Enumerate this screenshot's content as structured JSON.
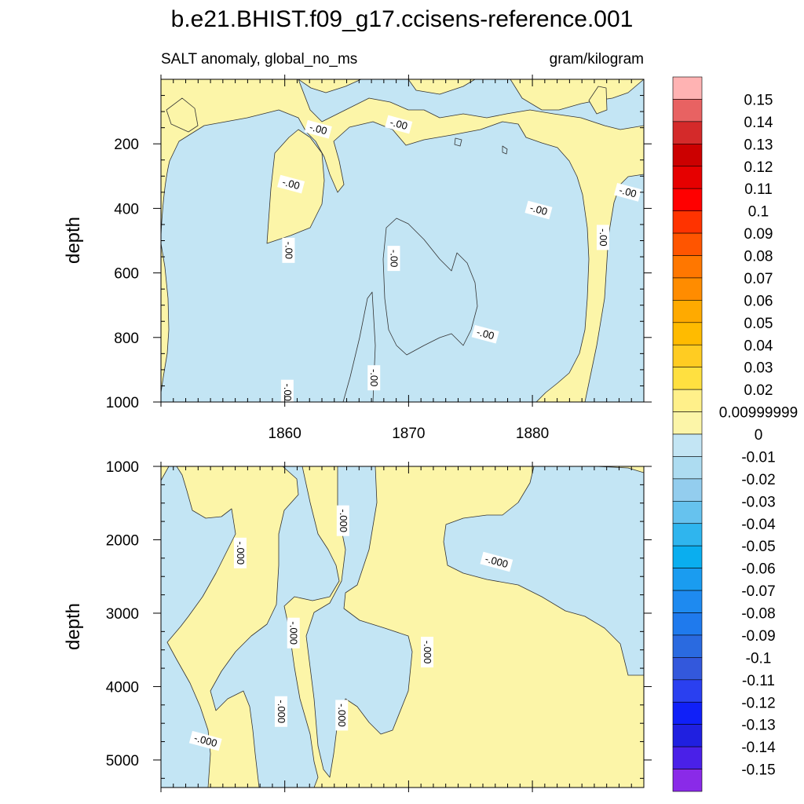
{
  "colors": {
    "positive_fill": "#fcf5a8",
    "negative_fill": "#c3e5f4",
    "contour_line": "#333333",
    "frame": "#000000"
  },
  "title": "b.e21.BHIST.f09_g17.ccisens-reference.001",
  "subtitle_left": "SALT anomaly, global_no_ms",
  "subtitle_right": "gram/kilogram",
  "chart_data": [
    {
      "type": "contour",
      "panel": "upper",
      "variable": "SALT anomaly",
      "region": "global_no_ms",
      "units": "gram/kilogram",
      "ylabel": "depth",
      "xlim": [
        1850,
        1889
      ],
      "ylim": [
        0,
        1000
      ],
      "y_reversed": true,
      "x_ticks": [
        1860,
        1870,
        1880
      ],
      "y_ticks": [
        200,
        400,
        600,
        800,
        1000
      ],
      "contour_labels": [
        {
          "text": "-.00",
          "x": 1862.7,
          "y": 155
        },
        {
          "text": "-.00",
          "x": 1869.2,
          "y": 140
        },
        {
          "text": "-.00",
          "x": 1860.5,
          "y": 325
        },
        {
          "text": "-.00",
          "x": 1860.3,
          "y": 530
        },
        {
          "text": "-.00",
          "x": 1868.8,
          "y": 555
        },
        {
          "text": "-.00",
          "x": 1880.5,
          "y": 405
        },
        {
          "text": "-.00",
          "x": 1885.7,
          "y": 490
        },
        {
          "text": "-.00",
          "x": 1887.7,
          "y": 350
        },
        {
          "text": "-.00",
          "x": 1876.2,
          "y": 790
        },
        {
          "text": "-.00",
          "x": 1867.2,
          "y": 925
        },
        {
          "text": "-.00",
          "x": 1860.2,
          "y": 970
        }
      ]
    },
    {
      "type": "contour",
      "panel": "lower",
      "variable": "SALT anomaly",
      "region": "global_no_ms",
      "units": "gram/kilogram",
      "ylabel": "depth",
      "xlim": [
        1850,
        1889
      ],
      "ylim": [
        1000,
        5375
      ],
      "y_reversed": true,
      "y_ticks": [
        1000,
        2000,
        3000,
        4000,
        5000
      ],
      "contour_labels": [
        {
          "text": "-.000",
          "x": 1856.4,
          "y": 2180
        },
        {
          "text": "-.000",
          "x": 1864.7,
          "y": 1740
        },
        {
          "text": "-.000",
          "x": 1860.7,
          "y": 3270
        },
        {
          "text": "-.000",
          "x": 1877.1,
          "y": 2300
        },
        {
          "text": "-.000",
          "x": 1871.5,
          "y": 3530
        },
        {
          "text": "-.000",
          "x": 1859.7,
          "y": 4340
        },
        {
          "text": "-.000",
          "x": 1864.6,
          "y": 4390
        },
        {
          "text": "-.000",
          "x": 1853.6,
          "y": 4740
        }
      ]
    }
  ],
  "colorbar": {
    "labels": [
      "0.15",
      "0.14",
      "0.13",
      "0.12",
      "0.11",
      "0.1",
      "0.09",
      "0.08",
      "0.07",
      "0.06",
      "0.05",
      "0.04",
      "0.03",
      "0.02",
      "0.00999999",
      "0",
      "-0.01",
      "-0.02",
      "-0.03",
      "-0.04",
      "-0.05",
      "-0.06",
      "-0.07",
      "-0.08",
      "-0.09",
      "-0.1",
      "-0.11",
      "-0.12",
      "-0.13",
      "-0.14",
      "-0.15"
    ],
    "colors": [
      "#ffb3b3",
      "#e86262",
      "#d42a2a",
      "#cc0000",
      "#e60000",
      "#ff0000",
      "#ff3300",
      "#ff5500",
      "#ff7700",
      "#ff8c00",
      "#ffaa00",
      "#ffbb00",
      "#ffcc22",
      "#ffe040",
      "#fff08a",
      "#fcf5a8",
      "#c3e5f4",
      "#addcf1",
      "#93cdee",
      "#66c2ee",
      "#2fb5ee",
      "#0aaeef",
      "#1a9cf0",
      "#1e8af0",
      "#1f7aed",
      "#2a6ae0",
      "#3358dc",
      "#2a40f0",
      "#1020f8",
      "#2020e0",
      "#4a20e8",
      "#8a2ae8"
    ]
  }
}
